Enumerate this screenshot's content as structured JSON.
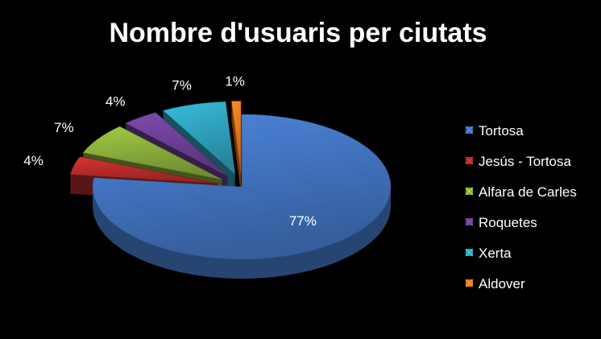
{
  "chart_data": {
    "type": "pie",
    "title": "Nombre d'usuaris per ciutats",
    "categories": [
      "Tortosa",
      "Jesús - Tortosa",
      "Alfara de Carles",
      "Roquetes",
      "Xerta",
      "Aldover"
    ],
    "values": [
      77,
      4,
      7,
      4,
      7,
      1
    ],
    "labels": [
      "77%",
      "4%",
      "7%",
      "4%",
      "7%",
      "1%"
    ],
    "colors": [
      "#3F6FB8",
      "#B22A2A",
      "#86A83A",
      "#6A3E92",
      "#2F9DB8",
      "#E8761E"
    ],
    "legend_position": "right",
    "style": "3d-exploded"
  }
}
